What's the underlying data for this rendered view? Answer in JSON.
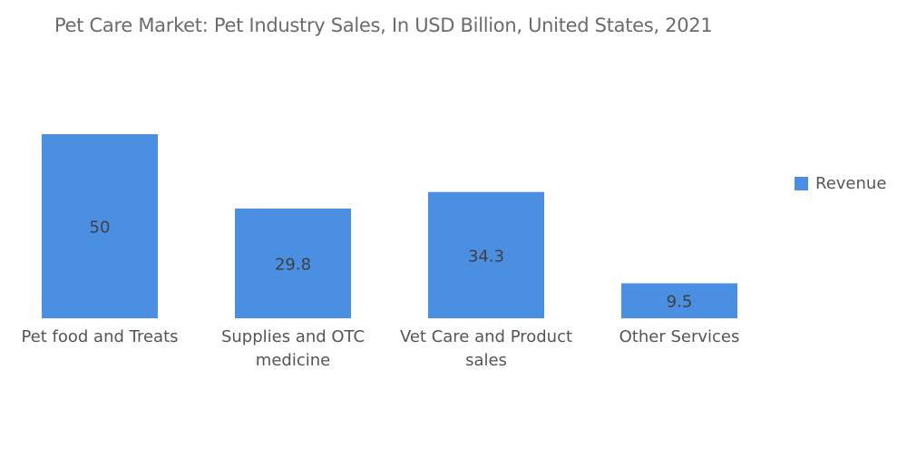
{
  "chart_data": {
    "type": "bar",
    "title": "Pet Care Market: Pet Industry Sales, In USD Billion, United States, 2021",
    "categories": [
      [
        "Pet food and Treats"
      ],
      [
        "Supplies and OTC",
        "medicine"
      ],
      [
        "Vet Care and Product",
        "sales"
      ],
      [
        "Other Services"
      ]
    ],
    "series": [
      {
        "name": "Revenue",
        "values": [
          50,
          29.8,
          34.3,
          9.5
        ],
        "color": "#4a8fe2"
      }
    ],
    "data_labels": [
      "50",
      "29.8",
      "34.3",
      "9.5"
    ],
    "ylim": [
      0,
      50
    ],
    "grid": false,
    "legend_position": "right"
  }
}
